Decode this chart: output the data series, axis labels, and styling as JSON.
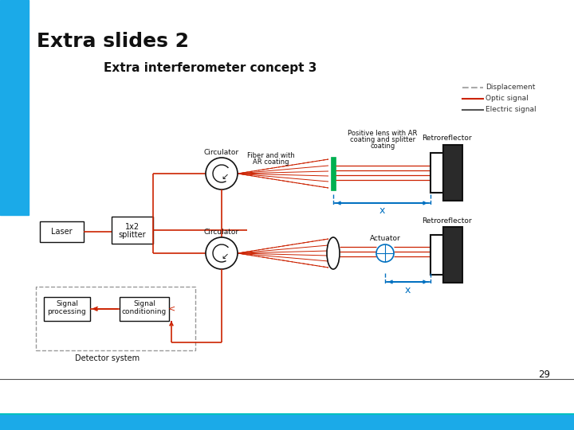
{
  "title": "Extra slides 2",
  "subtitle": "Extra interferometer concept 3",
  "page_number": "29",
  "bg_color": "#ffffff",
  "accent_blue": "#1baae8",
  "accent_teal": "#00c0c0",
  "red": "#cc2200",
  "blue": "#0070c0",
  "black": "#111111",
  "gray": "#999999",
  "green": "#00b050",
  "dark_fill": "#2a2a2a",
  "legend_labels": [
    "Displacement",
    "Optic signal",
    "Electric signal"
  ],
  "legend_colors": [
    "#aaaaaa",
    "#cc2200",
    "#555555"
  ],
  "legend_styles": [
    "--",
    "-",
    "-"
  ]
}
